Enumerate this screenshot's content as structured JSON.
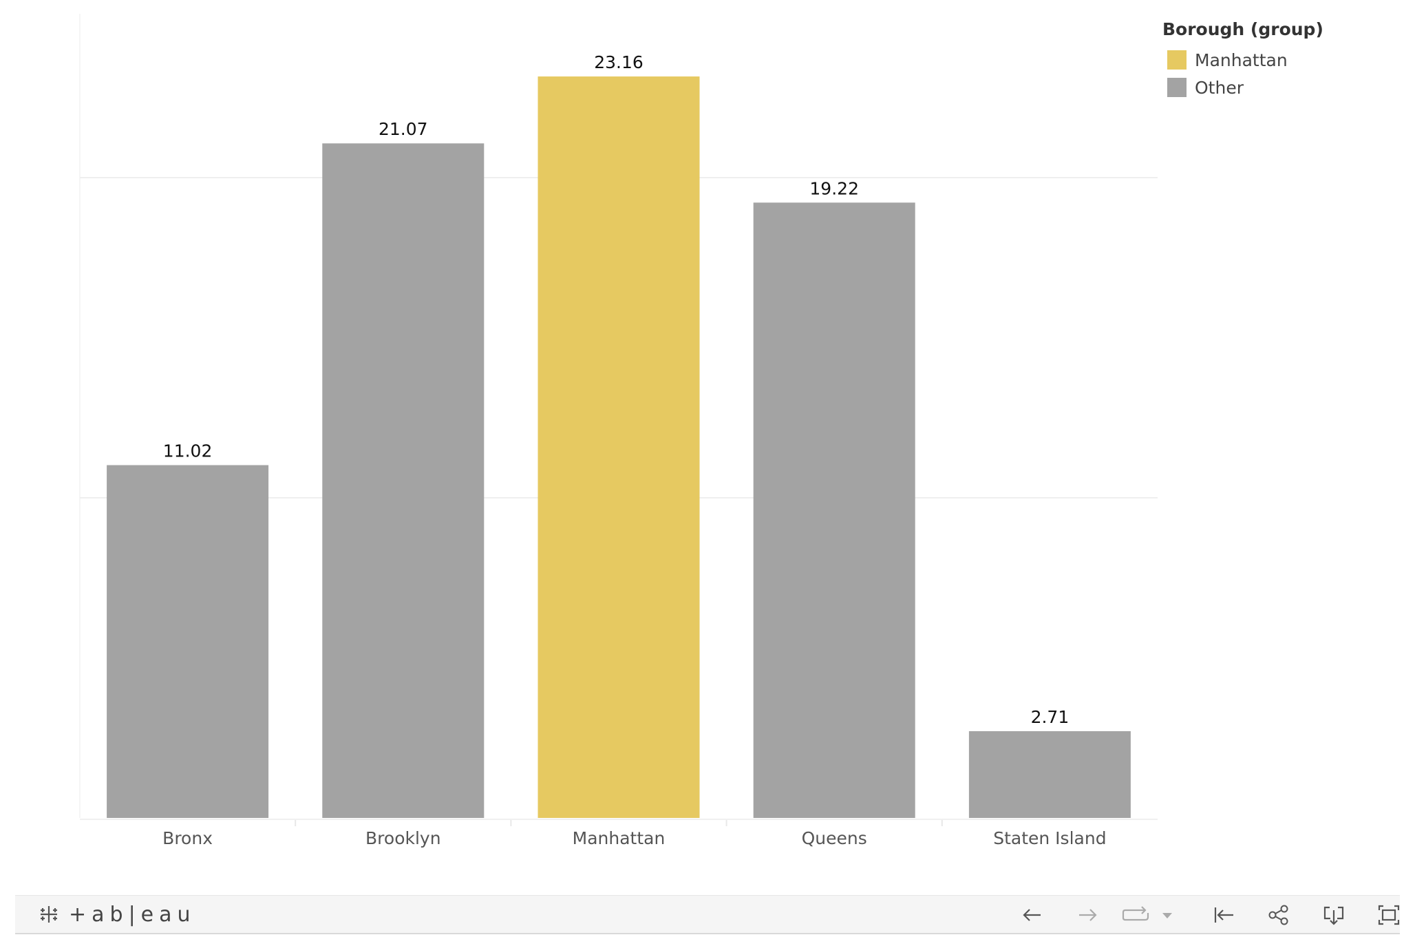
{
  "chart_data": {
    "type": "bar",
    "categories": [
      "Bronx",
      "Brooklyn",
      "Manhattan",
      "Queens",
      "Staten Island"
    ],
    "values": [
      11.02,
      21.07,
      23.16,
      19.22,
      2.71
    ],
    "value_labels": [
      "11.02",
      "21.07",
      "23.16",
      "19.22",
      "2.71"
    ],
    "groups": [
      "Other",
      "Other",
      "Manhattan",
      "Other",
      "Other"
    ],
    "ylim": [
      0,
      25
    ],
    "gridlines": [
      10,
      20
    ],
    "grid": true,
    "legend_placement": "top-right",
    "xlabel": "",
    "ylabel": ""
  },
  "legend": {
    "title": "Borough (group)",
    "items": [
      {
        "label": "Manhattan",
        "color": "#E6C961"
      },
      {
        "label": "Other",
        "color": "#A3A3A3"
      }
    ]
  },
  "colors": {
    "Manhattan": "#E6C961",
    "Other": "#A3A3A3",
    "gridline": "#EFEFEF",
    "axis_text": "#555555"
  },
  "toolbar": {
    "logo_text": "+ab|eau",
    "icons": [
      "undo-icon",
      "redo-icon",
      "revert-icon",
      "dropdown-icon",
      "reset-icon",
      "share-icon",
      "download-icon",
      "fullscreen-icon"
    ]
  }
}
